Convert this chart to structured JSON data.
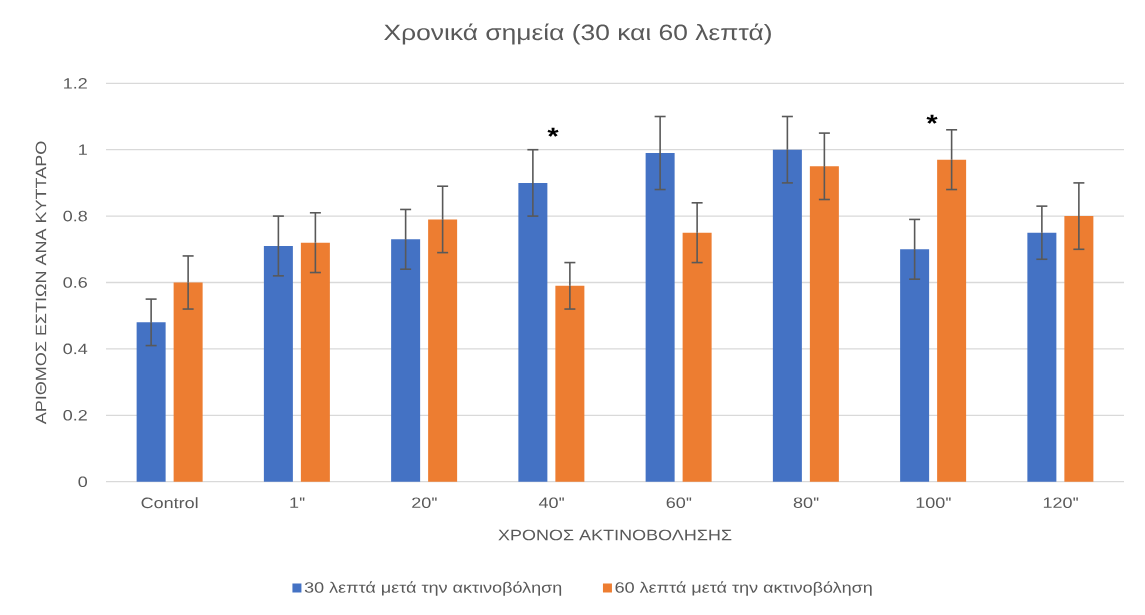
{
  "chart_data": {
    "type": "bar",
    "title": "Χρονικά σημεία (30 και 60 λεπτά)",
    "xlabel": "ΧΡΟΝΟΣ ΑΚΤΙΝΟΒΟΛΗΣΗΣ",
    "ylabel": "ΑΡΙΘΜΟΣ ΕΣΤΙΩΝ ΑΝΑ ΚΥΤΤΑΡΟ",
    "categories": [
      "Control",
      "1''",
      "20''",
      "40''",
      "60''",
      "80''",
      "100''",
      "120''"
    ],
    "series": [
      {
        "name": "30 λεπτά μετά την ακτινοβόληση",
        "color": "#4472c4",
        "values": [
          0.48,
          0.71,
          0.73,
          0.9,
          0.99,
          1.0,
          0.7,
          0.75
        ],
        "errors": [
          0.07,
          0.09,
          0.09,
          0.1,
          0.11,
          0.1,
          0.09,
          0.08
        ]
      },
      {
        "name": "60 λεπτά μετά την ακτινοβόληση",
        "color": "#ed7d31",
        "values": [
          0.6,
          0.72,
          0.79,
          0.59,
          0.75,
          0.95,
          0.97,
          0.8
        ],
        "errors": [
          0.08,
          0.09,
          0.1,
          0.07,
          0.09,
          0.1,
          0.09,
          0.1
        ]
      }
    ],
    "ylim": [
      0,
      1.2
    ],
    "yticks": [
      0,
      0.2,
      0.4,
      0.6,
      0.8,
      1,
      1.2
    ],
    "grid": "y",
    "legend": "bottom",
    "annotations": [
      "*",
      "*"
    ]
  }
}
